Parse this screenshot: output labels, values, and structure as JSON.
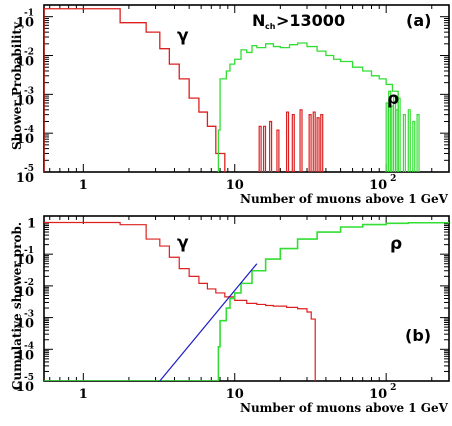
{
  "chart_data": [
    {
      "type": "histogram",
      "panel_label": "(a)",
      "xlabel": "Number of muons above 1 GeV",
      "ylabel": "Shower Probability",
      "x_scale": "log",
      "y_scale": "log",
      "xlim": [
        0.55,
        260
      ],
      "ylim": [
        1e-05,
        0.2
      ],
      "x_tick_labels": [
        {
          "value": 1,
          "label": "1"
        },
        {
          "value": 10,
          "label": "10"
        },
        {
          "value": 100,
          "base": "10",
          "exp": "2"
        }
      ],
      "y_tick_labels": [
        {
          "value": 0.1,
          "base": "10",
          "exp": "-1"
        },
        {
          "value": 0.01,
          "base": "10",
          "exp": "-2"
        },
        {
          "value": 0.001,
          "base": "10",
          "exp": "-3"
        },
        {
          "value": 0.0001,
          "base": "10",
          "exp": "-4"
        },
        {
          "value": 1e-05,
          "base": "10",
          "exp": "-5"
        }
      ],
      "annotation": {
        "base": "N",
        "sub": "ch",
        "rest": ">13000"
      },
      "series": [
        {
          "label": "γ",
          "color": "#dd2020",
          "edges": [
            0.55,
            1.75,
            2.6,
            3.2,
            3.7,
            4.3,
            5.0,
            5.8,
            6.6,
            7.5,
            8.6
          ],
          "values": [
            0.16,
            0.07,
            0.04,
            0.015,
            0.006,
            0.0025,
            0.0008,
            0.00035,
            0.00015,
            3e-05
          ]
        },
        {
          "label": "ρ",
          "color": "#33dd33",
          "edges": [
            7.8,
            8.0,
            8.8,
            9.3,
            10,
            11,
            12,
            13,
            14,
            16,
            18,
            20,
            23,
            26,
            30,
            35,
            40,
            45,
            50,
            60,
            70,
            80,
            90,
            100,
            110,
            120
          ],
          "values": [
            0.00012,
            0.0025,
            0.004,
            0.006,
            0.008,
            0.014,
            0.012,
            0.018,
            0.016,
            0.02,
            0.017,
            0.016,
            0.019,
            0.021,
            0.017,
            0.013,
            0.01,
            0.008,
            0.007,
            0.005,
            0.004,
            0.003,
            0.0025,
            0.0018,
            0.0012
          ]
        }
      ],
      "gamma_spikes": {
        "x": [
          14.5,
          15.5,
          17,
          19,
          22,
          24,
          27,
          31,
          33,
          35,
          37
        ],
        "values": [
          0.00015,
          0.00015,
          0.0002,
          0.00012,
          0.00035,
          0.0003,
          0.0004,
          0.0003,
          0.00035,
          0.00025,
          0.0003
        ]
      },
      "rho_spikes": {
        "x": [
          100,
          104,
          108,
          112,
          116,
          120,
          130,
          140,
          150,
          160
        ],
        "values": [
          0.0006,
          0.0012,
          0.0005,
          0.0009,
          0.0004,
          0.0008,
          0.0003,
          0.0004,
          0.0002,
          0.0003
        ]
      }
    },
    {
      "type": "line",
      "panel_label": "(b)",
      "xlabel": "Number of muons above 1 GeV",
      "ylabel": "Cumulative shower prob.",
      "x_scale": "log",
      "y_scale": "log",
      "xlim": [
        0.55,
        260
      ],
      "ylim": [
        1e-05,
        1.6
      ],
      "x_tick_labels": [
        {
          "value": 1,
          "label": "1"
        },
        {
          "value": 10,
          "label": "10"
        },
        {
          "value": 100,
          "base": "10",
          "exp": "2"
        }
      ],
      "y_tick_labels": [
        {
          "value": 1,
          "label": "1"
        },
        {
          "value": 0.1,
          "base": "10",
          "exp": "-1"
        },
        {
          "value": 0.01,
          "base": "10",
          "exp": "-2"
        },
        {
          "value": 0.001,
          "base": "10",
          "exp": "-3"
        },
        {
          "value": 0.0001,
          "base": "10",
          "exp": "-4"
        },
        {
          "value": 1e-05,
          "base": "10",
          "exp": "-5"
        }
      ],
      "series": [
        {
          "label": "γ",
          "color": "#dd2020",
          "style": "step",
          "x": [
            0.55,
            1.75,
            2.6,
            3.2,
            3.7,
            4.3,
            5.0,
            5.8,
            6.6,
            7.5,
            8.6,
            10,
            12,
            14,
            16,
            18,
            22,
            26,
            30,
            32,
            34,
            34
          ],
          "y": [
            1.0,
            0.85,
            0.3,
            0.18,
            0.08,
            0.035,
            0.02,
            0.012,
            0.008,
            0.006,
            0.0045,
            0.0035,
            0.0028,
            0.0026,
            0.0024,
            0.0023,
            0.0021,
            0.0019,
            0.0015,
            0.0009,
            0.0004,
            1e-05
          ]
        },
        {
          "label": "ρ",
          "color": "#33dd33",
          "style": "step",
          "x": [
            0.55,
            7.8,
            7.8,
            8.0,
            8.8,
            9.3,
            10,
            11,
            13,
            16,
            20,
            26,
            35,
            50,
            70,
            100,
            140,
            260
          ],
          "y": [
            1e-05,
            1e-05,
            0.00012,
            0.0008,
            0.002,
            0.004,
            0.006,
            0.012,
            0.03,
            0.07,
            0.15,
            0.3,
            0.5,
            0.72,
            0.86,
            0.94,
            0.98,
            1.0
          ]
        },
        {
          "label": "",
          "color": "#1a1acc",
          "style": "line",
          "x": [
            3.2,
            14
          ],
          "y": [
            1e-05,
            0.05
          ]
        }
      ]
    }
  ]
}
